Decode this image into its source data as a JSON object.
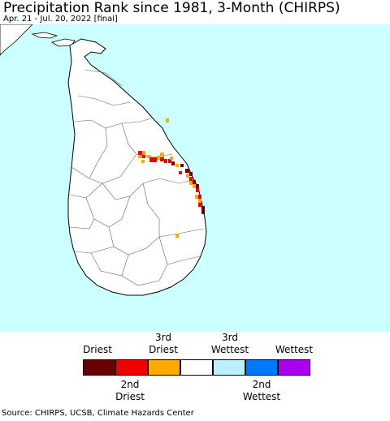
{
  "header": {
    "title": "Precipitation Rank since 1981, 3-Month (CHIRPS)",
    "subtitle": "Apr. 21 - Jul. 20, 2022 [final]"
  },
  "map": {
    "ocean_color": "#ccffff",
    "land_color": "#ffffff",
    "border_color": "#555555"
  },
  "legend": {
    "top_labels": [
      {
        "line1": "",
        "line2": "Driest"
      },
      {
        "line1": "3rd",
        "line2": "Driest"
      },
      {
        "line1": "3rd",
        "line2": "Wettest"
      },
      {
        "line1": "",
        "line2": "Wettest"
      }
    ],
    "bottom_labels": [
      {
        "line1": "2nd",
        "line2": "Driest"
      },
      {
        "line1": "2nd",
        "line2": "Wettest"
      }
    ],
    "swatches": [
      "#6b0000",
      "#ee0000",
      "#ffaa00",
      "#ffffff",
      "#bbeeff",
      "#0077ff",
      "#aa00ee"
    ]
  },
  "footer": {
    "source": "Source: CHIRPS, UCSB, Climate Hazards Center"
  }
}
